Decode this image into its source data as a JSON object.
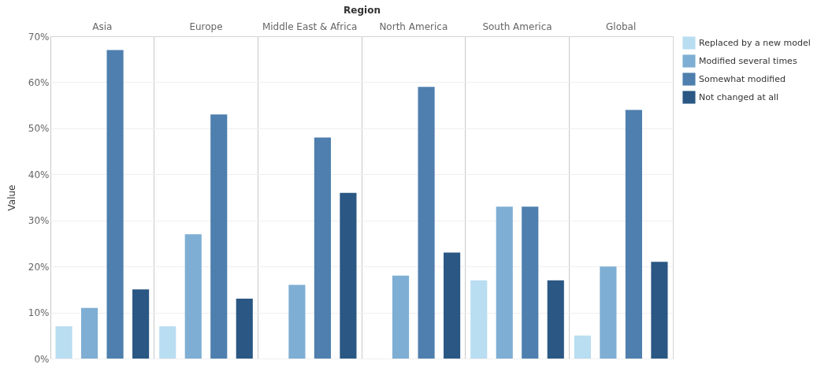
{
  "chart_data": {
    "type": "bar",
    "xlabel": "Region",
    "ylabel": "Value",
    "categories": [
      "Asia",
      "Europe",
      "Middle East & Africa",
      "North America",
      "South America",
      "Global"
    ],
    "series": [
      {
        "name": "Replaced by a new model",
        "color": "#b9ddf1",
        "values": [
          7,
          7,
          null,
          null,
          17,
          5
        ]
      },
      {
        "name": "Modified several times",
        "color": "#7eaed3",
        "values": [
          11,
          27,
          16,
          18,
          33,
          20
        ]
      },
      {
        "name": "Somewhat modified",
        "color": "#4e7fae",
        "values": [
          67,
          53,
          48,
          59,
          33,
          54
        ]
      },
      {
        "name": "Not changed at all",
        "color": "#2a5783",
        "values": [
          15,
          13,
          36,
          23,
          17,
          21
        ]
      }
    ],
    "ylim": [
      0,
      70
    ],
    "yticks": [
      {
        "value": 0,
        "label": "0%"
      },
      {
        "value": 10,
        "label": "10%"
      },
      {
        "value": 20,
        "label": "20%"
      },
      {
        "value": 30,
        "label": "30%"
      },
      {
        "value": 40,
        "label": "40%"
      },
      {
        "value": 50,
        "label": "50%"
      },
      {
        "value": 60,
        "label": "60%"
      },
      {
        "value": 70,
        "label": "70%"
      }
    ],
    "grid": true,
    "legend": "top right"
  }
}
